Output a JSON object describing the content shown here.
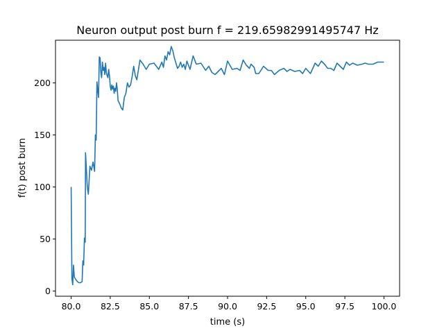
{
  "chart_data": {
    "type": "line",
    "title": "Neuron output post burn f = 219.65982991495747 Hz",
    "xlabel": "time (s)",
    "ylabel": "f(t) post burn",
    "xlim": [
      79.0,
      101.0
    ],
    "ylim": [
      -5,
      241
    ],
    "xticks": [
      80.0,
      82.5,
      85.0,
      87.5,
      90.0,
      92.5,
      95.0,
      97.5,
      100.0
    ],
    "xtick_labels": [
      "80.0",
      "82.5",
      "85.0",
      "87.5",
      "90.0",
      "92.5",
      "95.0",
      "97.5",
      "100.0"
    ],
    "yticks": [
      0,
      50,
      100,
      150,
      200
    ],
    "ytick_labels": [
      "0",
      "50",
      "100",
      "150",
      "200"
    ],
    "grid": false,
    "line_color": "#1f77b4",
    "series": [
      {
        "x": [
          80.0,
          80.05,
          80.1,
          80.15,
          80.2,
          80.22,
          80.3,
          80.4,
          80.5,
          80.6,
          80.7,
          80.75,
          80.8,
          80.85,
          80.9,
          80.92,
          81.0,
          81.02,
          81.05,
          81.1,
          81.2,
          81.3,
          81.4,
          81.5,
          81.55,
          81.6,
          81.65,
          81.7,
          81.75,
          81.8,
          81.85,
          81.9,
          81.95,
          82.0,
          82.05,
          82.1,
          82.15,
          82.2,
          82.25,
          82.3,
          82.35,
          82.4,
          82.45,
          82.5,
          82.55,
          82.6,
          82.65,
          82.7,
          82.75,
          82.8,
          82.85,
          82.9,
          82.95,
          83.0,
          83.1,
          83.2,
          83.3,
          83.4,
          83.5,
          83.6,
          83.7,
          83.8,
          83.9,
          84.0,
          84.1,
          84.2,
          84.4,
          84.6,
          84.8,
          85.0,
          85.3,
          85.6,
          85.8,
          85.9,
          86.0,
          86.1,
          86.2,
          86.3,
          86.4,
          86.5,
          86.6,
          86.7,
          86.8,
          86.9,
          87.0,
          87.1,
          87.2,
          87.3,
          87.4,
          87.6,
          87.8,
          88.0,
          88.3,
          88.6,
          88.8,
          89.0,
          89.2,
          89.4,
          89.6,
          89.8,
          90.0,
          90.3,
          90.6,
          90.8,
          91.0,
          91.2,
          91.4,
          91.5,
          91.7,
          91.8,
          92.0,
          92.3,
          92.6,
          92.8,
          93.0,
          93.3,
          93.6,
          93.8,
          94.0,
          94.3,
          94.6,
          94.8,
          95.0,
          95.3,
          95.6,
          95.8,
          96.0,
          96.2,
          96.4,
          96.6,
          96.8,
          97.0,
          97.2,
          97.4,
          97.6,
          97.8,
          98.0,
          98.3,
          98.6,
          98.8,
          99.0,
          99.3,
          99.6,
          99.8,
          100.0
        ],
        "y": [
          100,
          12,
          6,
          25,
          14,
          13,
          11,
          9,
          8,
          8,
          9,
          29,
          25,
          51,
          47,
          133,
          110,
          103,
          98,
          93,
          120,
          116,
          124,
          115,
          150,
          145,
          201,
          193,
          186,
          225,
          224,
          210,
          205,
          220,
          212,
          215,
          208,
          219,
          210,
          207,
          205,
          213,
          207,
          197,
          193,
          198,
          194,
          197,
          190,
          195,
          192,
          200,
          194,
          183,
          180,
          176,
          174,
          186,
          190,
          200,
          196,
          198,
          206,
          216,
          207,
          203,
          222,
          218,
          213,
          218,
          219,
          213,
          220,
          215,
          226,
          222,
          230,
          227,
          235,
          231,
          224,
          219,
          214,
          216,
          220,
          215,
          218,
          213,
          221,
          213,
          226,
          218,
          219,
          212,
          216,
          210,
          208,
          211,
          214,
          208,
          221,
          213,
          214,
          212,
          222,
          217,
          214,
          218,
          215,
          209,
          209,
          216,
          212,
          212,
          208,
          212,
          214,
          211,
          213,
          211,
          212,
          209,
          214,
          209,
          219,
          216,
          221,
          218,
          214,
          214,
          212,
          219,
          216,
          213,
          220,
          217,
          219,
          217,
          218,
          219,
          218,
          218,
          220,
          220,
          220
        ]
      }
    ]
  }
}
